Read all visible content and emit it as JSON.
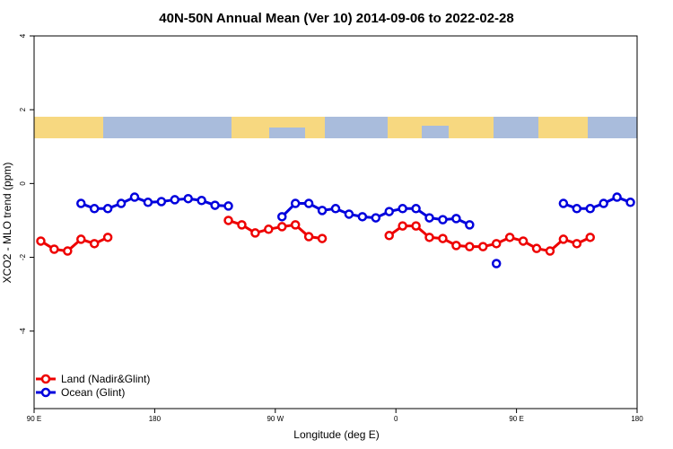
{
  "chart_data": {
    "type": "line",
    "title": "40N-50N Annual Mean (Ver 10)   2014-09-06 to 2022-02-28",
    "xlabel": "Longitude (deg E)",
    "ylabel": "XCO2 - MLO trend (ppm)",
    "x": [
      95,
      105,
      115,
      125,
      135,
      145,
      155,
      165,
      175,
      185,
      195,
      205,
      215,
      225,
      235,
      245,
      255,
      265,
      275,
      285,
      295,
      305,
      315,
      325,
      335,
      345,
      355,
      365,
      375,
      385,
      395,
      405,
      415,
      425,
      435,
      445,
      455,
      465,
      475,
      485,
      495,
      505,
      515,
      525,
      535
    ],
    "series": [
      {
        "name": "Land (Nadir&Glint)",
        "color": "#ee0000",
        "values": [
          -1.56,
          -1.78,
          -1.83,
          -1.51,
          -1.63,
          -1.46,
          null,
          null,
          null,
          null,
          null,
          null,
          null,
          null,
          -1.0,
          -1.12,
          -1.34,
          -1.24,
          -1.17,
          -1.12,
          -1.44,
          -1.49,
          null,
          null,
          null,
          null,
          -1.41,
          -1.15,
          -1.15,
          -1.46,
          -1.49,
          -1.68,
          -1.71,
          -1.71,
          -1.63,
          -1.46,
          -1.56,
          -1.76,
          -1.83,
          -1.51,
          -1.63,
          -1.46,
          null,
          null,
          null
        ]
      },
      {
        "name": "Ocean (Glint)",
        "color": "#0000dd",
        "values": [
          null,
          null,
          null,
          -0.54,
          -0.68,
          -0.68,
          -0.54,
          -0.37,
          -0.51,
          -0.49,
          -0.44,
          -0.41,
          -0.46,
          -0.59,
          -0.61,
          null,
          null,
          null,
          -0.9,
          -0.54,
          -0.54,
          -0.73,
          -0.68,
          -0.83,
          -0.9,
          -0.93,
          -0.76,
          -0.68,
          -0.68,
          -0.93,
          -0.98,
          -0.95,
          -1.12,
          null,
          -2.17,
          null,
          null,
          null,
          null,
          -0.54,
          -0.68,
          -0.68,
          -0.54,
          -0.37,
          -0.51
        ]
      }
    ],
    "xlim": [
      90,
      540
    ],
    "xticks": [
      {
        "value": 90,
        "label": "90 E"
      },
      {
        "value": 180,
        "label": "180"
      },
      {
        "value": 270,
        "label": "90 W"
      },
      {
        "value": 360,
        "label": "0"
      },
      {
        "value": 450,
        "label": "90 E"
      },
      {
        "value": 540,
        "label": "180"
      }
    ],
    "ylim": [
      -6.1,
      4
    ],
    "yticks": [
      -4,
      -2,
      0,
      2,
      4
    ],
    "legend": "lower left"
  }
}
